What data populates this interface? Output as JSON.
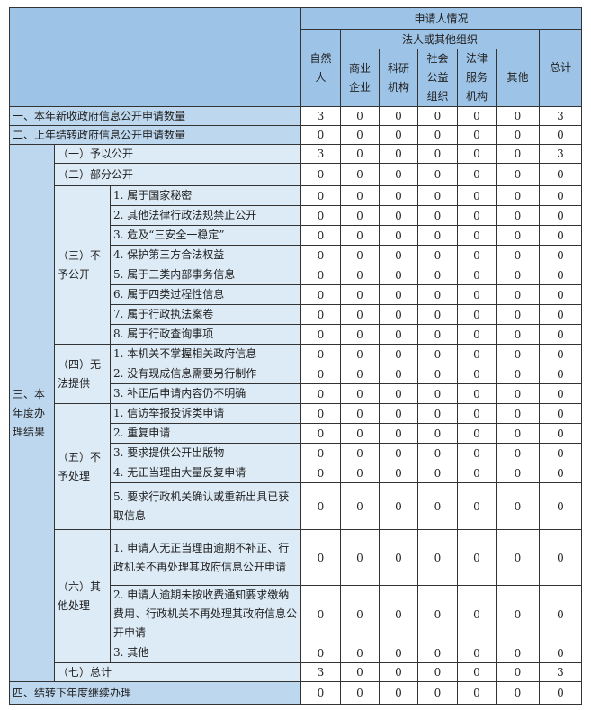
{
  "header": {
    "title": "申请人情况",
    "group": "法人或其他组织",
    "cols": [
      "自然人",
      "商业企业",
      "科研机构",
      "社会公益组织",
      "法律服务机构",
      "其他",
      "总计"
    ]
  },
  "colors": {
    "header": "#9DC3E6",
    "label": "#BDD7EE",
    "sublabel": "#DDEBF7"
  },
  "rows": [
    {
      "label": "一、本年新收政府信息公开申请数量",
      "values": [
        3,
        0,
        0,
        0,
        0,
        0,
        3
      ]
    },
    {
      "label": "二、上年结转政府信息公开申请数量",
      "values": [
        0,
        0,
        0,
        0,
        0,
        0,
        0
      ]
    },
    {
      "label": "三、本年度办理结果",
      "groups": [
        {
          "label": "（一）予以公开",
          "values": [
            3,
            0,
            0,
            0,
            0,
            0,
            3
          ]
        },
        {
          "label": "（二）部分公开",
          "values": [
            0,
            0,
            0,
            0,
            0,
            0,
            0
          ]
        },
        {
          "label": "（三）不予公开",
          "items": [
            {
              "label": "1. 属于国家秘密",
              "values": [
                0,
                0,
                0,
                0,
                0,
                0,
                0
              ]
            },
            {
              "label": "2. 其他法律行政法规禁止公开",
              "values": [
                0,
                0,
                0,
                0,
                0,
                0,
                0
              ]
            },
            {
              "label": "3. 危及“三安全一稳定”",
              "values": [
                0,
                0,
                0,
                0,
                0,
                0,
                0
              ]
            },
            {
              "label": "4. 保护第三方合法权益",
              "values": [
                0,
                0,
                0,
                0,
                0,
                0,
                0
              ]
            },
            {
              "label": "5. 属于三类内部事务信息",
              "values": [
                0,
                0,
                0,
                0,
                0,
                0,
                0
              ]
            },
            {
              "label": "6. 属于四类过程性信息",
              "values": [
                0,
                0,
                0,
                0,
                0,
                0,
                0
              ]
            },
            {
              "label": "7. 属于行政执法案卷",
              "values": [
                0,
                0,
                0,
                0,
                0,
                0,
                0
              ]
            },
            {
              "label": "8. 属于行政查询事项",
              "values": [
                0,
                0,
                0,
                0,
                0,
                0,
                0
              ]
            }
          ]
        },
        {
          "label": "（四）无法提供",
          "items": [
            {
              "label": "1. 本机关不掌握相关政府信息",
              "values": [
                0,
                0,
                0,
                0,
                0,
                0,
                0
              ]
            },
            {
              "label": "2. 没有现成信息需要另行制作",
              "values": [
                0,
                0,
                0,
                0,
                0,
                0,
                0
              ]
            },
            {
              "label": "3. 补正后申请内容仍不明确",
              "values": [
                0,
                0,
                0,
                0,
                0,
                0,
                0
              ]
            }
          ]
        },
        {
          "label": "（五）不予处理",
          "items": [
            {
              "label": "1. 信访举报投诉类申请",
              "values": [
                0,
                0,
                0,
                0,
                0,
                0,
                0
              ]
            },
            {
              "label": "2. 重复申请",
              "values": [
                0,
                0,
                0,
                0,
                0,
                0,
                0
              ]
            },
            {
              "label": "3. 要求提供公开出版物",
              "values": [
                0,
                0,
                0,
                0,
                0,
                0,
                0
              ]
            },
            {
              "label": "4. 无正当理由大量反复申请",
              "values": [
                0,
                0,
                0,
                0,
                0,
                0,
                0
              ]
            },
            {
              "label": "5. 要求行政机关确认或重新出具已获取信息",
              "values": [
                0,
                0,
                0,
                0,
                0,
                0,
                0
              ]
            }
          ]
        },
        {
          "label": "（六）其他处理",
          "items": [
            {
              "label": "1. 申请人无正当理由逾期不补正、行政机关不再处理其政府信息公开申请",
              "values": [
                0,
                0,
                0,
                0,
                0,
                0,
                0
              ]
            },
            {
              "label": "2. 申请人逾期未按收费通知要求缴纳费用、行政机关不再处理其政府信息公开申请",
              "values": [
                0,
                0,
                0,
                0,
                0,
                0,
                0
              ]
            },
            {
              "label": "3. 其他",
              "values": [
                0,
                0,
                0,
                0,
                0,
                0,
                0
              ]
            }
          ]
        },
        {
          "label": "（七）总计",
          "values": [
            3,
            0,
            0,
            0,
            0,
            0,
            3
          ]
        }
      ]
    },
    {
      "label": "四、结转下年度继续办理",
      "values": [
        0,
        0,
        0,
        0,
        0,
        0,
        0
      ]
    }
  ]
}
